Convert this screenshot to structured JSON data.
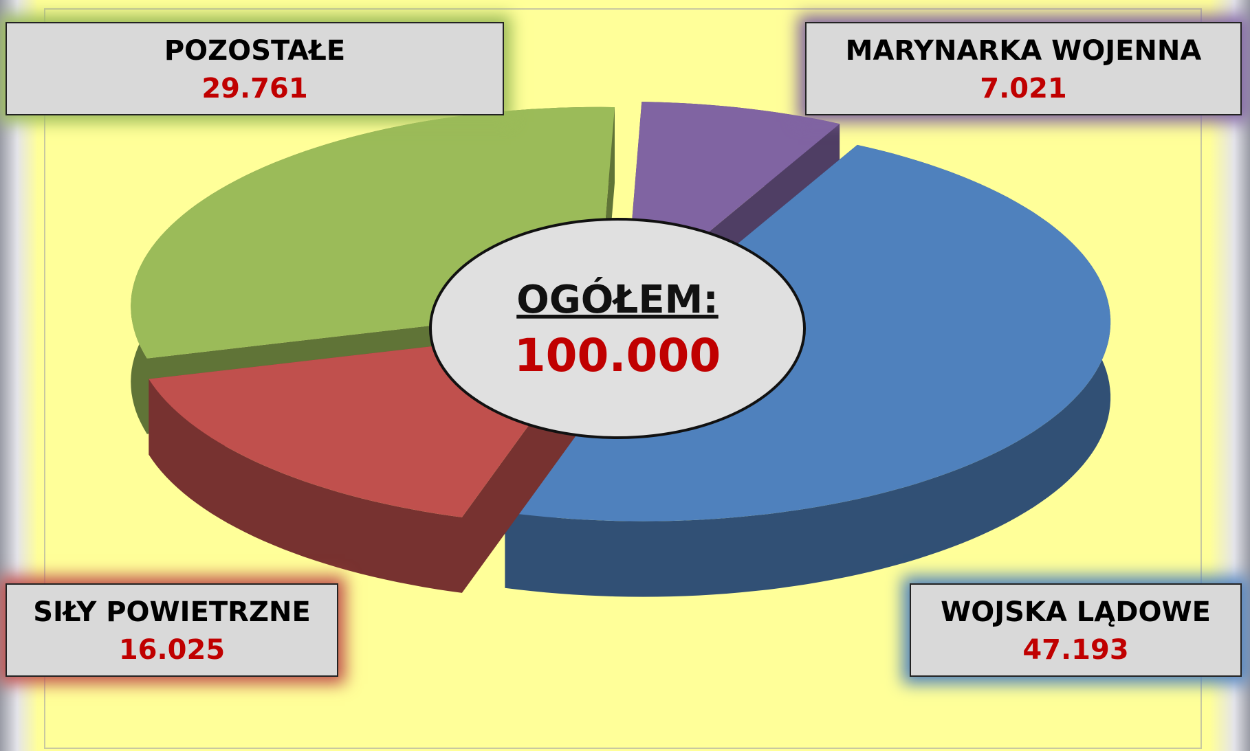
{
  "chart_data": {
    "type": "pie",
    "title": "OGÓŁEM:",
    "total": {
      "value": 100000,
      "label": "100.000"
    },
    "categories": [
      "MARYNARKA WOJENNA",
      "WOJSKA LĄDOWE",
      "SIŁY POWIETRZNE",
      "POZOSTAŁE"
    ],
    "values": [
      7021,
      47193,
      16025,
      29761
    ],
    "value_labels": [
      "7.021",
      "47.193",
      "16.025",
      "29.761"
    ],
    "colors": [
      "#8064a2",
      "#4f81bd",
      "#c0504d",
      "#9bbb59"
    ]
  }
}
